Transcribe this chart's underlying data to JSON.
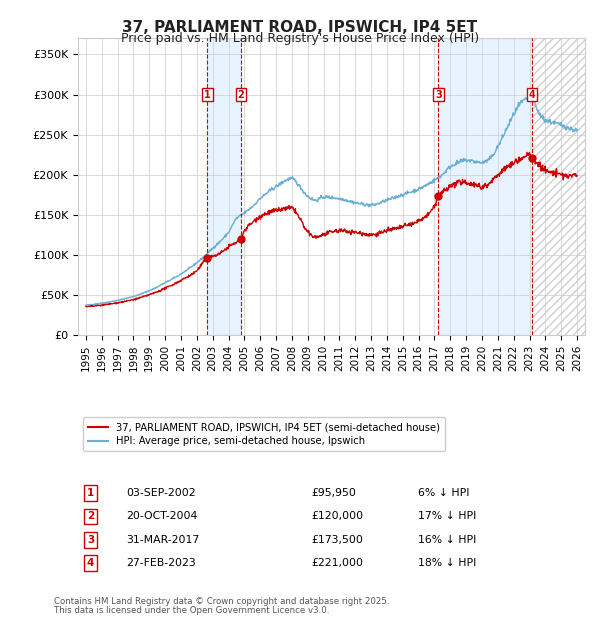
{
  "title": "37, PARLIAMENT ROAD, IPSWICH, IP4 5ET",
  "subtitle": "Price paid vs. HM Land Registry's House Price Index (HPI)",
  "legend_property": "37, PARLIAMENT ROAD, IPSWICH, IP4 5ET (semi-detached house)",
  "legend_hpi": "HPI: Average price, semi-detached house, Ipswich",
  "footer1": "Contains HM Land Registry data © Crown copyright and database right 2025.",
  "footer2": "This data is licensed under the Open Government Licence v3.0.",
  "transactions": [
    {
      "num": 1,
      "date": "03-SEP-2002",
      "price": "£95,950",
      "pct": "6%",
      "x_year": 2002.67
    },
    {
      "num": 2,
      "date": "20-OCT-2004",
      "price": "£120,000",
      "pct": "17%",
      "x_year": 2004.79
    },
    {
      "num": 3,
      "date": "31-MAR-2017",
      "price": "£173,500",
      "pct": "16%",
      "x_year": 2017.24
    },
    {
      "num": 4,
      "date": "27-FEB-2023",
      "price": "£221,000",
      "pct": "18%",
      "x_year": 2023.16
    }
  ],
  "transaction_prices": [
    95950,
    120000,
    173500,
    221000
  ],
  "xlim": [
    1994.5,
    2026.5
  ],
  "ylim": [
    0,
    370000
  ],
  "yticks": [
    0,
    50000,
    100000,
    150000,
    200000,
    250000,
    300000,
    350000
  ],
  "ytick_labels": [
    "£0",
    "£50K",
    "£100K",
    "£150K",
    "£200K",
    "£250K",
    "£300K",
    "£350K"
  ],
  "xticks": [
    1995,
    1996,
    1997,
    1998,
    1999,
    2000,
    2001,
    2002,
    2003,
    2004,
    2005,
    2006,
    2007,
    2008,
    2009,
    2010,
    2011,
    2012,
    2013,
    2014,
    2015,
    2016,
    2017,
    2018,
    2019,
    2020,
    2021,
    2022,
    2023,
    2024,
    2025,
    2026
  ],
  "property_line_color": "#cc0000",
  "hpi_line_color": "#6baed6",
  "vline_color": "#cc0000",
  "shade_color": "#ddeeff",
  "grid_color": "#cccccc",
  "background_color": "#ffffff",
  "plot_bg_color": "#ffffff",
  "hpi_anchors": [
    [
      1995.0,
      37000
    ],
    [
      1996.0,
      39500
    ],
    [
      1997.0,
      43000
    ],
    [
      1998.0,
      48000
    ],
    [
      1999.0,
      55000
    ],
    [
      2000.0,
      65000
    ],
    [
      2001.0,
      76000
    ],
    [
      2002.0,
      90000
    ],
    [
      2003.0,
      108000
    ],
    [
      2004.0,
      128000
    ],
    [
      2004.5,
      145000
    ],
    [
      2005.0,
      152000
    ],
    [
      2005.5,
      160000
    ],
    [
      2006.0,
      170000
    ],
    [
      2007.0,
      185000
    ],
    [
      2008.0,
      195000
    ],
    [
      2008.5,
      185000
    ],
    [
      2009.0,
      173000
    ],
    [
      2009.5,
      168000
    ],
    [
      2010.0,
      172000
    ],
    [
      2011.0,
      170000
    ],
    [
      2012.0,
      165000
    ],
    [
      2013.0,
      162000
    ],
    [
      2014.0,
      168000
    ],
    [
      2015.0,
      175000
    ],
    [
      2016.0,
      182000
    ],
    [
      2017.0,
      193000
    ],
    [
      2017.5,
      200000
    ],
    [
      2018.0,
      210000
    ],
    [
      2018.5,
      215000
    ],
    [
      2019.0,
      218000
    ],
    [
      2020.0,
      215000
    ],
    [
      2020.5,
      220000
    ],
    [
      2021.0,
      235000
    ],
    [
      2021.5,
      255000
    ],
    [
      2022.0,
      275000
    ],
    [
      2022.5,
      290000
    ],
    [
      2023.0,
      295000
    ],
    [
      2023.2,
      293000
    ],
    [
      2023.5,
      280000
    ],
    [
      2024.0,
      268000
    ],
    [
      2024.5,
      265000
    ],
    [
      2025.0,
      262000
    ],
    [
      2025.5,
      258000
    ],
    [
      2026.0,
      255000
    ]
  ],
  "prop_anchors": [
    [
      1995.0,
      35000
    ],
    [
      1996.0,
      37000
    ],
    [
      1997.0,
      40000
    ],
    [
      1998.0,
      44000
    ],
    [
      1999.0,
      50000
    ],
    [
      2000.0,
      58000
    ],
    [
      2001.0,
      68000
    ],
    [
      2002.0,
      80000
    ],
    [
      2002.67,
      95950
    ],
    [
      2003.0,
      98000
    ],
    [
      2003.5,
      102000
    ],
    [
      2004.0,
      110000
    ],
    [
      2004.79,
      120000
    ],
    [
      2005.0,
      130000
    ],
    [
      2005.5,
      140000
    ],
    [
      2006.0,
      148000
    ],
    [
      2007.0,
      155000
    ],
    [
      2008.0,
      158000
    ],
    [
      2008.5,
      145000
    ],
    [
      2009.0,
      128000
    ],
    [
      2009.5,
      122000
    ],
    [
      2010.0,
      125000
    ],
    [
      2011.0,
      130000
    ],
    [
      2012.0,
      128000
    ],
    [
      2013.0,
      125000
    ],
    [
      2014.0,
      130000
    ],
    [
      2015.0,
      135000
    ],
    [
      2016.0,
      142000
    ],
    [
      2017.0,
      160000
    ],
    [
      2017.24,
      173500
    ],
    [
      2017.5,
      178000
    ],
    [
      2018.0,
      185000
    ],
    [
      2018.5,
      190000
    ],
    [
      2019.0,
      190000
    ],
    [
      2019.5,
      188000
    ],
    [
      2020.0,
      185000
    ],
    [
      2020.5,
      190000
    ],
    [
      2021.0,
      200000
    ],
    [
      2021.5,
      208000
    ],
    [
      2022.0,
      215000
    ],
    [
      2022.5,
      220000
    ],
    [
      2023.0,
      225000
    ],
    [
      2023.16,
      221000
    ],
    [
      2023.5,
      215000
    ],
    [
      2024.0,
      205000
    ],
    [
      2024.5,
      202000
    ],
    [
      2025.0,
      200000
    ],
    [
      2025.5,
      198000
    ],
    [
      2026.0,
      200000
    ]
  ]
}
